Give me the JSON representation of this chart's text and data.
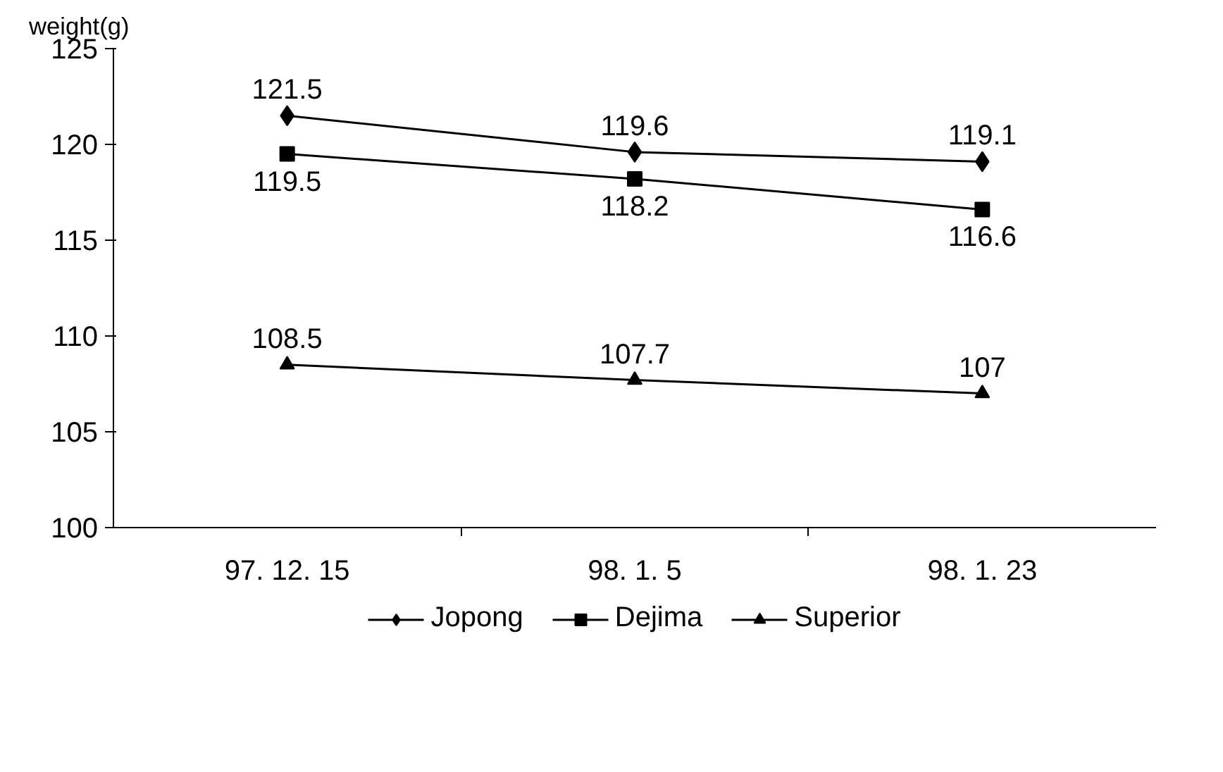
{
  "chart_data": {
    "type": "line",
    "ylabel": "weight(g)",
    "categories": [
      "97. 12. 15",
      "98. 1. 5",
      "98. 1. 23"
    ],
    "series": [
      {
        "name": "Jopong",
        "color": "#000000",
        "marker": "diamond",
        "values": [
          121.5,
          119.6,
          119.1
        ]
      },
      {
        "name": "Dejima",
        "color": "#000000",
        "marker": "square",
        "values": [
          119.5,
          118.2,
          116.6
        ]
      },
      {
        "name": "Superior",
        "color": "#000000",
        "marker": "triangle",
        "values": [
          108.5,
          107.7,
          107
        ]
      }
    ],
    "ylim": [
      100,
      125
    ],
    "yticks": [
      100,
      105,
      110,
      115,
      120,
      125
    ],
    "grid": false,
    "legend": "bottom",
    "data_labels": true,
    "line_style": "solid"
  }
}
